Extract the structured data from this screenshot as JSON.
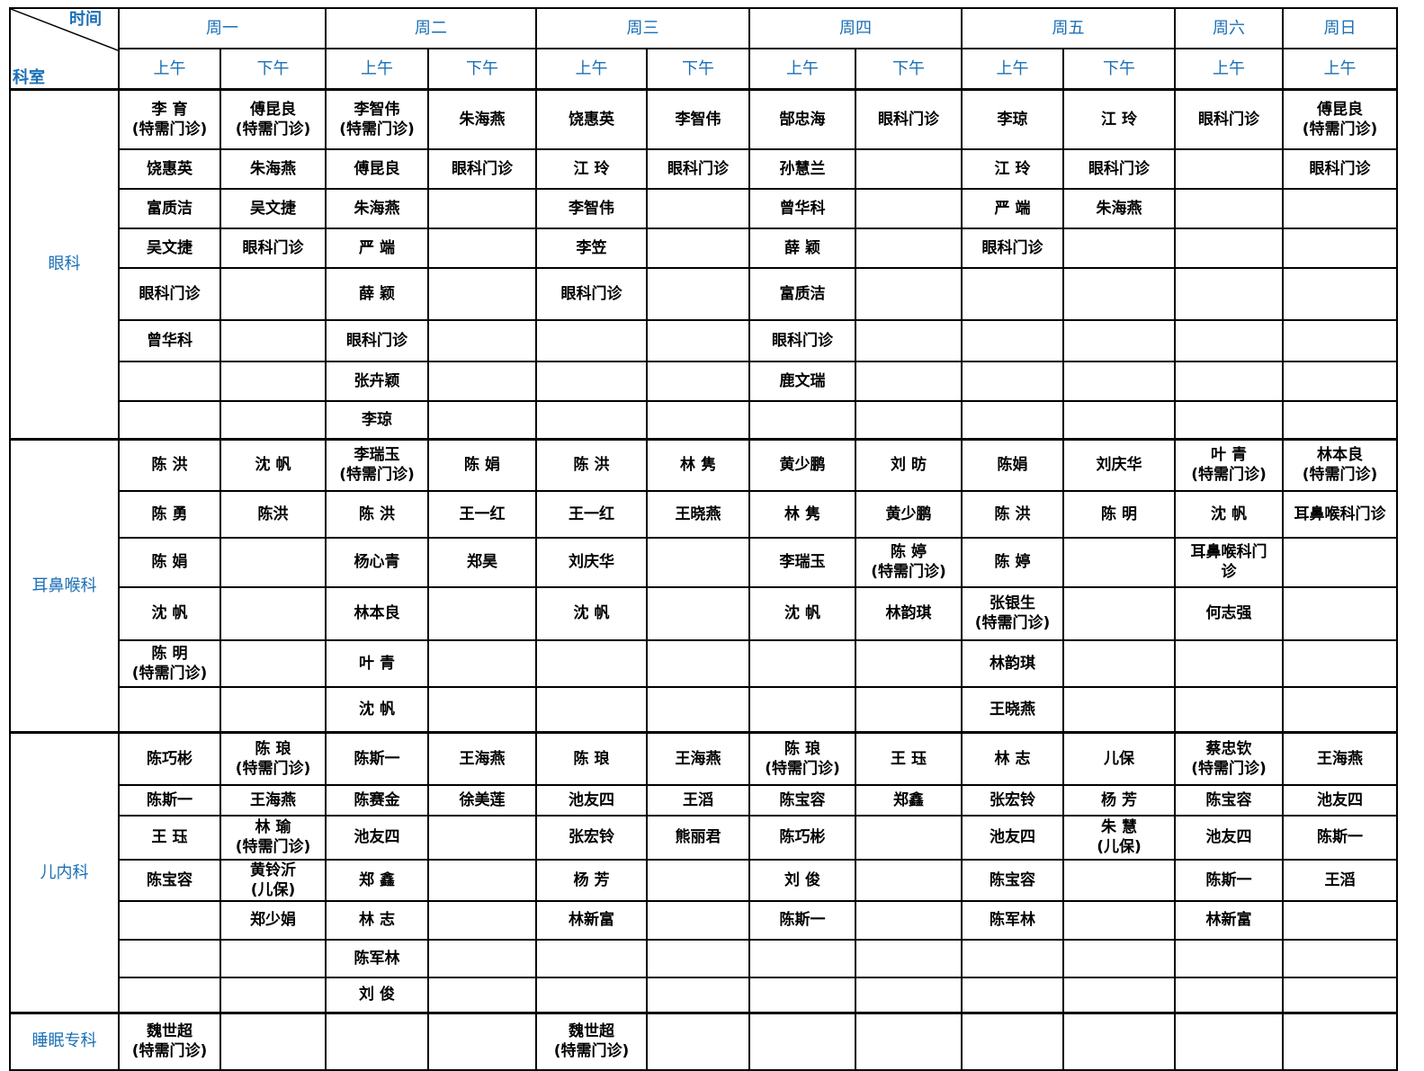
{
  "header": {
    "corner_time": "时间",
    "corner_dept": "科室",
    "days": [
      "周一",
      "周二",
      "周三",
      "周四",
      "周五",
      "周六",
      "周日"
    ],
    "sessions": [
      "上午",
      "下午",
      "上午",
      "下午",
      "上午",
      "下午",
      "上午",
      "下午",
      "上午",
      "下午",
      "上午",
      "上午"
    ]
  },
  "colors": {
    "header_text": "#1a6fb5",
    "grid": "#000000"
  },
  "departments": [
    {
      "name": "眼科",
      "rows": [
        [
          "李 育\n(特需门诊)",
          "傅昆良\n(特需门诊)",
          "李智伟\n(特需门诊)",
          "朱海燕",
          "饶惠英",
          "李智伟",
          "郜忠海",
          "眼科门诊",
          "李琼",
          "江 玲",
          "眼科门诊",
          "傅昆良\n(特需门诊)"
        ],
        [
          "饶惠英",
          "朱海燕",
          "傅昆良",
          "眼科门诊",
          "江 玲",
          "眼科门诊",
          "孙慧兰",
          "",
          "江 玲",
          "眼科门诊",
          "",
          "眼科门诊"
        ],
        [
          "富质洁",
          "吴文捷",
          "朱海燕",
          "",
          "李智伟",
          "",
          "曾华科",
          "",
          "严 端",
          "朱海燕",
          "",
          ""
        ],
        [
          "吴文捷",
          "眼科门诊",
          "严 端",
          "",
          "李笠",
          "",
          "薛 颖",
          "",
          "眼科门诊",
          "",
          "",
          ""
        ],
        [
          "眼科门诊",
          "",
          "薛 颖",
          "",
          "眼科门诊",
          "",
          "富质洁",
          "",
          "",
          "",
          "",
          ""
        ],
        [
          "曾华科",
          "",
          "眼科门诊",
          "",
          "",
          "",
          "眼科门诊",
          "",
          "",
          "",
          "",
          ""
        ],
        [
          "",
          "",
          "张卉颖",
          "",
          "",
          "",
          "鹿文瑞",
          "",
          "",
          "",
          "",
          ""
        ],
        [
          "",
          "",
          "李琼",
          "",
          "",
          "",
          "",
          "",
          "",
          "",
          "",
          ""
        ]
      ]
    },
    {
      "name": "耳鼻喉科",
      "rows": [
        [
          "陈 洪",
          "沈 帆",
          "李瑞玉\n(特需门诊)",
          "陈 娟",
          "陈 洪",
          "林 隽",
          "黄少鹏",
          "刘 昉",
          "陈娟",
          "刘庆华",
          "叶 青\n(特需门诊)",
          "林本良\n(特需门诊)"
        ],
        [
          "陈 勇",
          "陈洪",
          "陈 洪",
          "王一红",
          "王一红",
          "王晓燕",
          "林 隽",
          "黄少鹏",
          "陈 洪",
          "陈 明",
          "沈 帆",
          "耳鼻喉科门诊"
        ],
        [
          "陈 娟",
          "",
          "杨心青",
          "郑昊",
          "刘庆华",
          "",
          "李瑞玉",
          "陈 婷\n(特需门诊)",
          "陈 婷",
          "",
          "耳鼻喉科门\n诊",
          ""
        ],
        [
          "沈 帆",
          "",
          "林本良",
          "",
          "沈 帆",
          "",
          "沈 帆",
          "林韵琪",
          "张银生\n(特需门诊)",
          "",
          "何志强",
          ""
        ],
        [
          "陈 明\n(特需门诊)",
          "",
          "叶 青",
          "",
          "",
          "",
          "",
          "",
          "林韵琪",
          "",
          "",
          ""
        ],
        [
          "",
          "",
          "沈 帆",
          "",
          "",
          "",
          "",
          "",
          "王晓燕",
          "",
          "",
          ""
        ]
      ]
    },
    {
      "name": "儿内科",
      "rows": [
        [
          "陈巧彬",
          "陈 琅\n(特需门诊)",
          "陈斯一",
          "王海燕",
          "陈 琅",
          "王海燕",
          "陈 琅\n(特需门诊)",
          "王 珏",
          "林 志",
          "儿保",
          "蔡忠钦\n(特需门诊)",
          "王海燕"
        ],
        [
          "陈斯一",
          "王海燕",
          "陈赛金",
          "徐美莲",
          "池友四",
          "王滔",
          "陈宝容",
          "郑鑫",
          "张宏铃",
          "杨 芳",
          "陈宝容",
          "池友四"
        ],
        [
          "王 珏",
          "林 瑜\n(特需门诊)",
          "池友四",
          "",
          "张宏铃",
          "熊丽君",
          "陈巧彬",
          "",
          "池友四",
          "朱 慧\n(儿保)",
          "池友四",
          "陈斯一"
        ],
        [
          "陈宝容",
          "黄铃沂\n(儿保)",
          "郑 鑫",
          "",
          "杨 芳",
          "",
          "刘 俊",
          "",
          "陈宝容",
          "",
          "陈斯一",
          "王滔"
        ],
        [
          "",
          "郑少娟",
          "林 志",
          "",
          "林新富",
          "",
          "陈斯一",
          "",
          "陈军林",
          "",
          "林新富",
          ""
        ],
        [
          "",
          "",
          "陈军林",
          "",
          "",
          "",
          "",
          "",
          "",
          "",
          "",
          ""
        ],
        [
          "",
          "",
          "刘 俊",
          "",
          "",
          "",
          "",
          "",
          "",
          "",
          "",
          ""
        ]
      ]
    },
    {
      "name": "睡眠专科",
      "rows": [
        [
          "魏世超\n(特需门诊)",
          "",
          "",
          "",
          "魏世超\n(特需门诊)",
          "",
          "",
          "",
          "",
          "",
          "",
          ""
        ]
      ]
    }
  ]
}
